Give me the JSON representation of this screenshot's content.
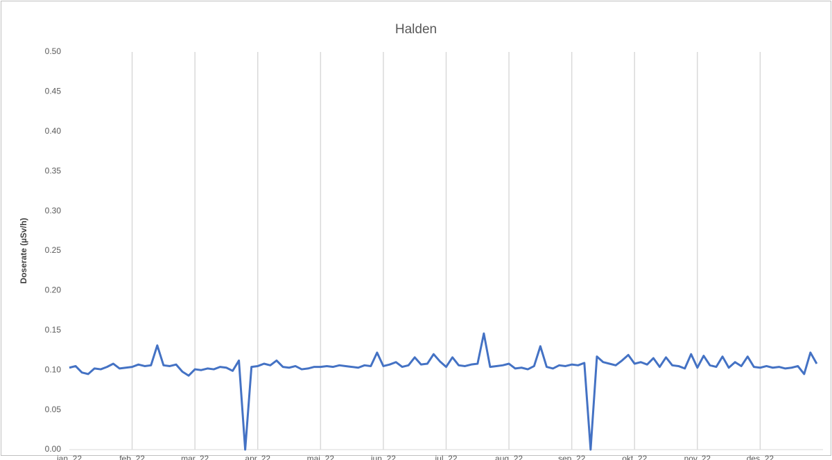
{
  "chart_data": {
    "type": "line",
    "title": "Halden",
    "y_label": "Doserate (µSv/h)",
    "categories": [
      "jan. 22",
      null,
      null,
      null,
      null,
      null,
      null,
      null,
      null,
      null,
      "feb. 22",
      null,
      null,
      null,
      null,
      null,
      null,
      null,
      null,
      null,
      "mar. 22",
      null,
      null,
      null,
      null,
      null,
      null,
      null,
      null,
      null,
      "apr. 22",
      null,
      null,
      null,
      null,
      null,
      null,
      null,
      null,
      null,
      "mai. 22",
      null,
      null,
      null,
      null,
      null,
      null,
      null,
      null,
      null,
      "jun. 22",
      null,
      null,
      null,
      null,
      null,
      null,
      null,
      null,
      null,
      "jul. 22",
      null,
      null,
      null,
      null,
      null,
      null,
      null,
      null,
      null,
      "aug. 22",
      null,
      null,
      null,
      null,
      null,
      null,
      null,
      null,
      null,
      "sep. 22",
      null,
      null,
      null,
      null,
      null,
      null,
      null,
      null,
      null,
      "okt. 22",
      null,
      null,
      null,
      null,
      null,
      null,
      null,
      null,
      null,
      "nov. 22",
      null,
      null,
      null,
      null,
      null,
      null,
      null,
      null,
      null,
      "des. 22",
      null,
      null,
      null,
      null,
      null,
      null,
      null,
      null,
      null
    ],
    "series": [
      {
        "name": "Halden",
        "color": "#4472c4",
        "values": [
          0.103,
          0.105,
          0.097,
          0.095,
          0.102,
          0.101,
          0.104,
          0.108,
          0.102,
          0.103,
          0.104,
          0.107,
          0.105,
          0.106,
          0.131,
          0.106,
          0.105,
          0.107,
          0.098,
          0.093,
          0.101,
          0.1,
          0.102,
          0.101,
          0.104,
          0.103,
          0.099,
          0.112,
          0.0,
          0.104,
          0.105,
          0.108,
          0.106,
          0.112,
          0.104,
          0.103,
          0.105,
          0.101,
          0.102,
          0.104,
          0.104,
          0.105,
          0.104,
          0.106,
          0.105,
          0.104,
          0.103,
          0.106,
          0.105,
          0.122,
          0.105,
          0.107,
          0.11,
          0.104,
          0.106,
          0.116,
          0.107,
          0.108,
          0.12,
          0.111,
          0.104,
          0.116,
          0.106,
          0.105,
          0.107,
          0.108,
          0.146,
          0.104,
          0.105,
          0.106,
          0.108,
          0.102,
          0.103,
          0.101,
          0.105,
          0.13,
          0.104,
          0.102,
          0.106,
          0.105,
          0.107,
          0.106,
          0.109,
          0.0,
          0.117,
          0.11,
          0.108,
          0.106,
          0.112,
          0.119,
          0.108,
          0.11,
          0.107,
          0.115,
          0.104,
          0.116,
          0.106,
          0.105,
          0.102,
          0.12,
          0.103,
          0.118,
          0.106,
          0.104,
          0.117,
          0.103,
          0.11,
          0.105,
          0.117,
          0.104,
          0.103,
          0.105,
          0.103,
          0.104,
          0.102,
          0.103,
          0.105,
          0.095,
          0.122,
          0.108
        ]
      }
    ],
    "ylim": [
      0,
      0.5
    ],
    "yticks": [
      {
        "value": 0,
        "label": "0.00"
      },
      {
        "value": 0.05,
        "label": "0.05"
      },
      {
        "value": 0.1,
        "label": "0.10"
      },
      {
        "value": 0.15,
        "label": "0.15"
      },
      {
        "value": 0.2,
        "label": "0.20"
      },
      {
        "value": 0.25,
        "label": "0.25"
      },
      {
        "value": 0.3,
        "label": "0.30"
      },
      {
        "value": 0.35,
        "label": "0.35"
      },
      {
        "value": 0.4,
        "label": "0.40"
      },
      {
        "value": 0.45,
        "label": "0.45"
      },
      {
        "value": 0.5,
        "label": "0.50"
      }
    ],
    "grid": "x"
  }
}
